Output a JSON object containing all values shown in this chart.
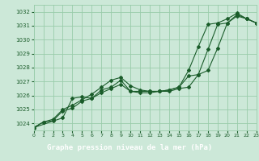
{
  "bg_color": "#cce8d8",
  "plot_bg": "#cce8d8",
  "grid_color": "#99ccaa",
  "line_color": "#1a5c2a",
  "title": "Graphe pression niveau de la mer (hPa)",
  "xlim": [
    0,
    23
  ],
  "ylim": [
    1023.5,
    1032.5
  ],
  "yticks": [
    1024,
    1025,
    1026,
    1027,
    1028,
    1029,
    1030,
    1031,
    1032
  ],
  "xticks": [
    0,
    1,
    2,
    3,
    4,
    5,
    6,
    7,
    8,
    9,
    10,
    11,
    12,
    13,
    14,
    15,
    16,
    17,
    18,
    19,
    20,
    21,
    22,
    23
  ],
  "series1": {
    "x": [
      0,
      1,
      2,
      3,
      4,
      5,
      6,
      7,
      8,
      9,
      10,
      11,
      12,
      13,
      14,
      15,
      16,
      17,
      18,
      19,
      20,
      21,
      22,
      23
    ],
    "y": [
      1023.7,
      1024.1,
      1024.2,
      1024.9,
      1025.1,
      1025.6,
      1025.8,
      1026.2,
      1026.5,
      1026.8,
      1026.3,
      1026.2,
      1026.2,
      1026.3,
      1026.3,
      1026.5,
      1026.6,
      1027.5,
      1029.3,
      1031.1,
      1031.2,
      1031.7,
      1031.5,
      1031.2
    ]
  },
  "series2": {
    "x": [
      0,
      1,
      2,
      3,
      4,
      5,
      6,
      7,
      8,
      9,
      10,
      11,
      12,
      13,
      14,
      15,
      16,
      17,
      18,
      19,
      20,
      21,
      22,
      23
    ],
    "y": [
      1023.7,
      1024.1,
      1024.3,
      1025.0,
      1025.3,
      1025.7,
      1026.1,
      1026.6,
      1027.1,
      1027.3,
      1026.7,
      1026.4,
      1026.3,
      1026.3,
      1026.4,
      1026.6,
      1027.8,
      1029.5,
      1031.1,
      1031.2,
      1031.5,
      1031.9,
      1031.5,
      1031.2
    ]
  },
  "series3": {
    "x": [
      0,
      3,
      4,
      5,
      6,
      7,
      8,
      9,
      10,
      11,
      12,
      13,
      14,
      15,
      16,
      17,
      18,
      19,
      20,
      21,
      22,
      23
    ],
    "y": [
      1023.7,
      1024.4,
      1025.8,
      1025.9,
      1025.8,
      1026.4,
      1026.6,
      1027.1,
      1026.3,
      1026.3,
      1026.3,
      1026.3,
      1026.4,
      1026.6,
      1027.4,
      1027.5,
      1027.8,
      1029.4,
      1031.2,
      1031.8,
      1031.5,
      1031.2
    ]
  },
  "title_bg": "#2a6b3a",
  "title_color": "#ffffff"
}
